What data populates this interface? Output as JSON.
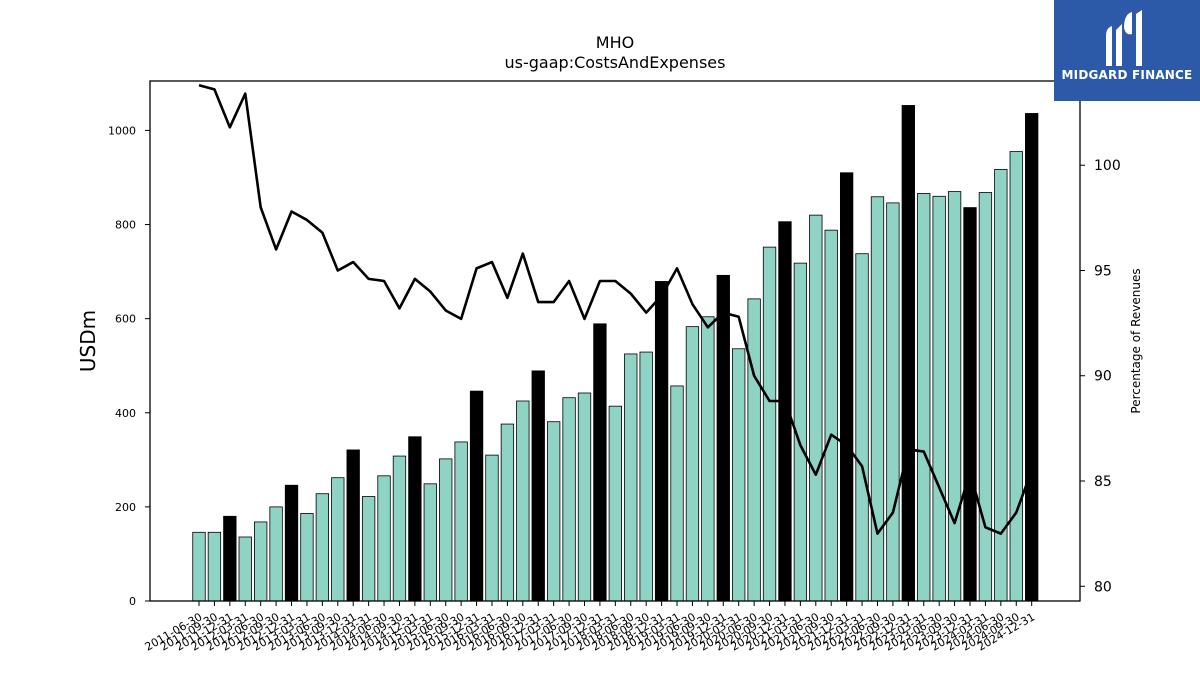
{
  "chart_data": {
    "type": "bar+line",
    "title": "MHO",
    "subtitle": "us-gaap:CostsAndExpenses",
    "ylabel_left": "USDm",
    "ylabel_right": "Percentage of Revenues",
    "ylim_left": [
      0,
      1105
    ],
    "ylim_right": [
      79.3,
      104
    ],
    "yticks_left": [
      "0",
      "200",
      "400",
      "600",
      "800",
      "1000"
    ],
    "yticks_right": [
      "80",
      "85",
      "90",
      "95",
      "100"
    ],
    "grid": false,
    "colors": {
      "bar_quarter": "#8fd3c5",
      "bar_year_end": "#000000",
      "line": "#000000"
    },
    "categories": [
      "2011-06-30",
      "2011-09-30",
      "2011-12-31",
      "2012-03-31",
      "2012-06-30",
      "2012-09-30",
      "2012-12-31",
      "2013-03-31",
      "2013-06-30",
      "2013-09-30",
      "2013-12-31",
      "2014-03-31",
      "2014-06-30",
      "2014-09-30",
      "2014-12-31",
      "2015-03-31",
      "2015-06-30",
      "2015-09-30",
      "2015-12-31",
      "2016-03-31",
      "2016-06-30",
      "2016-09-30",
      "2016-12-31",
      "2017-03-31",
      "2017-06-30",
      "2017-09-30",
      "2017-12-31",
      "2018-03-31",
      "2018-06-30",
      "2018-09-30",
      "2018-12-31",
      "2019-03-31",
      "2019-06-30",
      "2019-09-30",
      "2019-12-31",
      "2020-03-31",
      "2020-06-30",
      "2020-09-30",
      "2020-12-31",
      "2021-03-31",
      "2021-06-30",
      "2021-09-30",
      "2021-12-31",
      "2022-03-31",
      "2022-06-30",
      "2022-09-30",
      "2022-12-31",
      "2023-03-31",
      "2023-06-30",
      "2023-09-30",
      "2023-12-31",
      "2024-03-31",
      "2024-06-30",
      "2024-09-30",
      "2024-12-31"
    ],
    "series": [
      {
        "axis": "left",
        "kind": "bar",
        "values": [
          146,
          146,
          180,
          136,
          168,
          200,
          246,
          186,
          228,
          262,
          321,
          222,
          266,
          308,
          349,
          249,
          302,
          338,
          446,
          310,
          376,
          425,
          489,
          381,
          432,
          442,
          589,
          414,
          525,
          529,
          679,
          457,
          583,
          604,
          692,
          536,
          642,
          752,
          806,
          718,
          820,
          788,
          910,
          738,
          859,
          846,
          1053,
          866,
          860,
          870,
          836,
          868,
          917,
          955,
          1036
        ],
        "year_end": [
          false,
          false,
          true,
          false,
          false,
          false,
          true,
          false,
          false,
          false,
          true,
          false,
          false,
          false,
          true,
          false,
          false,
          false,
          true,
          false,
          false,
          false,
          true,
          false,
          false,
          false,
          true,
          false,
          false,
          false,
          true,
          false,
          false,
          false,
          true,
          false,
          false,
          false,
          true,
          false,
          false,
          false,
          true,
          false,
          false,
          false,
          true,
          false,
          false,
          false,
          true,
          false,
          false,
          false,
          true
        ]
      },
      {
        "axis": "right",
        "kind": "line",
        "values": [
          103.8,
          103.6,
          101.8,
          103.4,
          98.0,
          96.0,
          97.8,
          97.4,
          96.8,
          95.0,
          95.4,
          94.6,
          94.5,
          93.2,
          94.6,
          94.0,
          93.1,
          92.7,
          95.1,
          95.4,
          93.7,
          95.8,
          93.5,
          93.5,
          94.5,
          92.7,
          94.5,
          94.5,
          93.9,
          93.0,
          93.8,
          95.1,
          93.4,
          92.3,
          93.0,
          92.8,
          90.0,
          88.8,
          88.8,
          86.7,
          85.3,
          87.2,
          86.7,
          85.7,
          82.5,
          83.5,
          86.5,
          86.4,
          84.7,
          83.0,
          85.4,
          82.8,
          82.5,
          83.5,
          85.5
        ]
      }
    ]
  },
  "logo": {
    "text": "MIDGARD FINANCE",
    "background": "#2d5aa8"
  }
}
